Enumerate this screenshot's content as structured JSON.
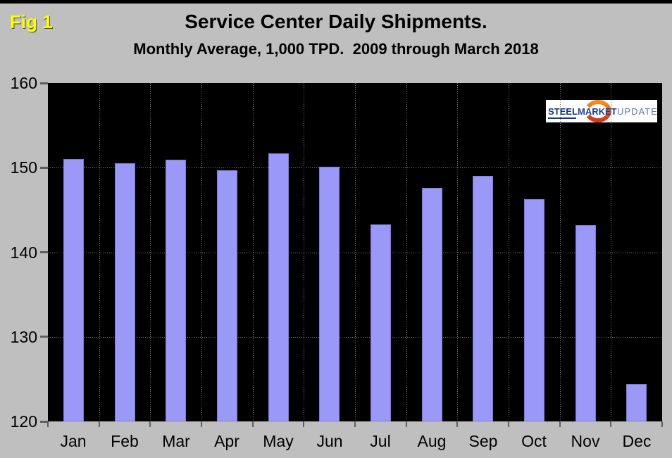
{
  "header": {
    "figure_label": "Fig 1",
    "title": "Service Center Daily Shipments.",
    "subtitle": "Monthly Average, 1,000 TPD.  2009 through March 2018"
  },
  "logo": {
    "word1": "STEEL",
    "word2": "MARKET",
    "word3": "UPDATE",
    "colors": {
      "steel": "#14367e",
      "market": "#1d4098",
      "update": "#5c7cb0",
      "swoosh_top": "#f29022",
      "swoosh_bottom": "#cf3a1d",
      "background": "#ffffff"
    }
  },
  "colors": {
    "page_background": "#bfbfbf",
    "top_border": "#000000",
    "plot_background": "#000000",
    "bar_fill": "#9a99f8",
    "bar_border": "#7b7ad4",
    "gridline": "#7d7d7d",
    "tick": "#5f5f5f",
    "text": "#000000",
    "figure_label_color": "#ffff00"
  },
  "chart_data": {
    "type": "bar",
    "title": "Service Center Daily Shipments.",
    "subtitle": "Monthly Average, 1,000 TPD.  2009 through March 2018",
    "categories": [
      "Jan",
      "Feb",
      "Mar",
      "Apr",
      "May",
      "Jun",
      "Jul",
      "Aug",
      "Sep",
      "Oct",
      "Nov",
      "Dec"
    ],
    "values": [
      151.0,
      150.5,
      150.9,
      149.7,
      151.7,
      150.1,
      143.3,
      147.6,
      149.0,
      146.3,
      143.2,
      124.4
    ],
    "xlabel": "",
    "ylabel": "",
    "ylim": [
      120,
      160
    ],
    "yticks": [
      120,
      130,
      140,
      150,
      160
    ],
    "grid": "dotted",
    "legend_position": "none",
    "plot_bg": "#000000",
    "bar_color": "#9a99f8"
  }
}
